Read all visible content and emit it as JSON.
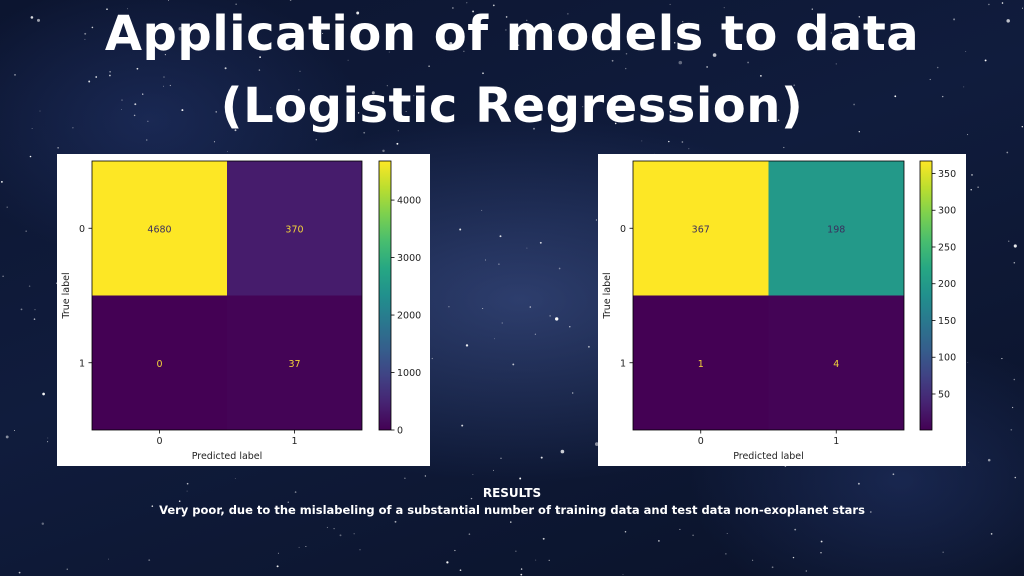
{
  "slide": {
    "title_line1": "Application of models to data",
    "title_line2": "(Logistic Regression)",
    "results_heading": "RESULTS",
    "results_text": "Very poor, due to the mislabeling of a substantial number of training data and test data non-exoplanet stars"
  },
  "chart_data": [
    {
      "type": "heatmap",
      "title": "",
      "xlabel": "Predicted label",
      "ylabel": "True label",
      "x_categories": [
        "0",
        "1"
      ],
      "y_categories": [
        "0",
        "1"
      ],
      "values": [
        [
          4680,
          370
        ],
        [
          0,
          37
        ]
      ],
      "colormap": "viridis",
      "colorbar_ticks": [
        "0",
        "1000",
        "2000",
        "3000",
        "4000"
      ],
      "colorbar_range": [
        0,
        4680
      ]
    },
    {
      "type": "heatmap",
      "title": "",
      "xlabel": "Predicted label",
      "ylabel": "True label",
      "x_categories": [
        "0",
        "1"
      ],
      "y_categories": [
        "0",
        "1"
      ],
      "values": [
        [
          367,
          198
        ],
        [
          1,
          4
        ]
      ],
      "colormap": "viridis",
      "colorbar_ticks": [
        "50",
        "100",
        "150",
        "200",
        "250",
        "300",
        "350"
      ],
      "colorbar_range": [
        1,
        367
      ]
    }
  ]
}
